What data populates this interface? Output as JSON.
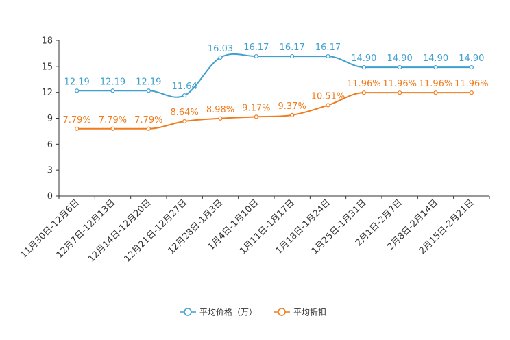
{
  "chart_data": {
    "type": "line",
    "title": "",
    "xlabel": "",
    "ylabel": "",
    "ylim": [
      0,
      18
    ],
    "yticks": [
      0,
      3,
      6,
      9,
      12,
      15,
      18
    ],
    "categories": [
      "11月30日-12月6日",
      "12月7日-12月13日",
      "12月14日-12月20日",
      "12月21日-12月27日",
      "12月28日-1月3日",
      "1月4日-1月10日",
      "1月11日-1月17日",
      "1月18日-1月24日",
      "1月25日-1月31日",
      "2月1日-2月7日",
      "2月8日-2月14日",
      "2月15日-2月21日"
    ],
    "series": [
      {
        "name": "平均价格（万）",
        "color": "#3ea0cf",
        "values": [
          12.19,
          12.19,
          12.19,
          11.64,
          16.03,
          16.17,
          16.17,
          16.17,
          14.9,
          14.9,
          14.9,
          14.9
        ],
        "labels": [
          "12.19",
          "12.19",
          "12.19",
          "11.64",
          "16.03",
          "16.17",
          "16.17",
          "16.17",
          "14.90",
          "14.90",
          "14.90",
          "14.90"
        ]
      },
      {
        "name": "平均折扣",
        "color": "#f07b1c",
        "values": [
          7.79,
          7.79,
          7.79,
          8.64,
          8.98,
          9.17,
          9.37,
          10.51,
          11.96,
          11.96,
          11.96,
          11.96
        ],
        "labels": [
          "7.79%",
          "7.79%",
          "7.79%",
          "8.64%",
          "8.98%",
          "9.17%",
          "9.37%",
          "10.51%",
          "11.96%",
          "11.96%",
          "11.96%",
          "11.96%"
        ]
      }
    ],
    "legend": "bottom-center",
    "grid": false
  }
}
